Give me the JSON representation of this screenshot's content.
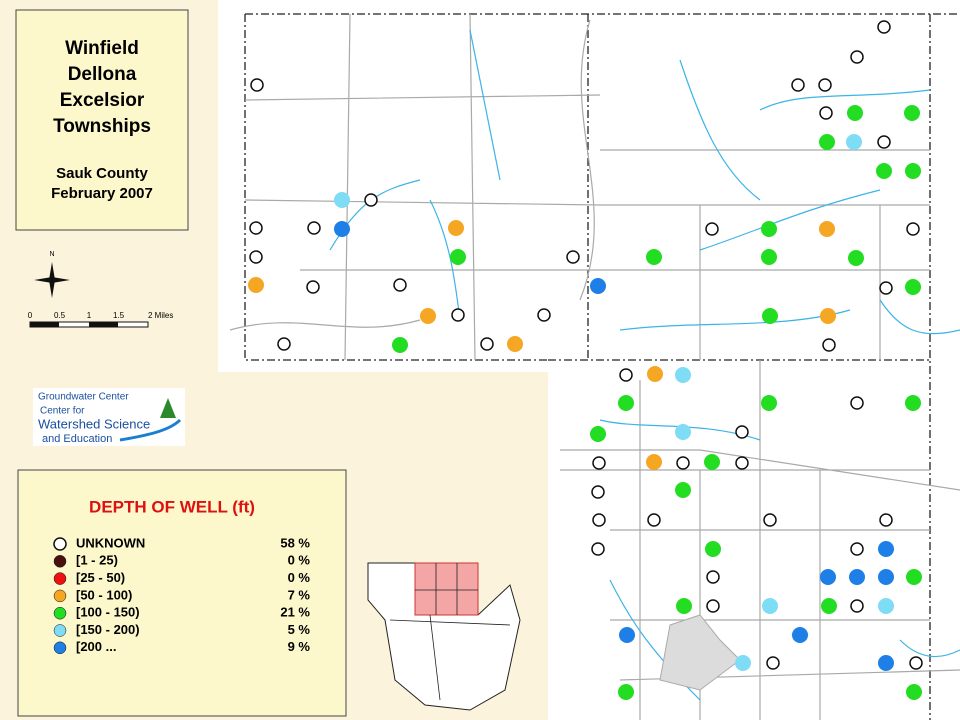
{
  "title_box": {
    "title_lines": [
      "Winfield",
      "Dellona",
      "Excelsior",
      "Townships"
    ],
    "county": "Sauk County",
    "date": "February 2007"
  },
  "north_label": "N",
  "scale_bar": {
    "ticks": [
      "0",
      "0.5",
      "1",
      "1.5",
      "2 Miles"
    ]
  },
  "logo": {
    "lines": [
      "Groundwater Center",
      "Center for",
      "Watershed Science",
      "and Education"
    ]
  },
  "legend": {
    "title": "DEPTH OF WELL (ft)",
    "items": [
      {
        "label": "UNKNOWN",
        "percent": "58 %",
        "color": "#ffffff"
      },
      {
        "label": "[1 - 25)",
        "percent": "0 %",
        "color": "#4a0f0f"
      },
      {
        "label": "[25 - 50)",
        "percent": "0 %",
        "color": "#ee1111"
      },
      {
        "label": "[50 - 100)",
        "percent": "7 %",
        "color": "#f5a623"
      },
      {
        "label": "[100 - 150)",
        "percent": "21 %",
        "color": "#22dd22"
      },
      {
        "label": "[150 - 200)",
        "percent": "5 %",
        "color": "#7fdcf5"
      },
      {
        "label": "[200 ...",
        "percent": "9 %",
        "color": "#1e7fe6"
      }
    ]
  }
}
